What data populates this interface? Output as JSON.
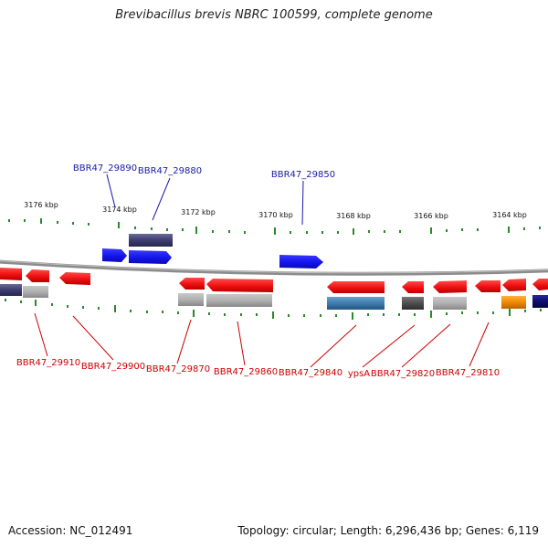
{
  "title": "Brevibacillus brevis NBRC 100599, complete genome",
  "accession": "Accession: NC_012491",
  "summary": "Topology: circular; Length: 6,296,436 bp; Genes: 6,119",
  "colors": {
    "forward_cds": "#1a1aee",
    "reverse_cds": "#ee1111",
    "backbone": "#8c8c8c",
    "tick": "#2a8a2a",
    "label_forward": "#1a1aa8",
    "label_reverse": "#cc0000"
  },
  "scale_labels": [
    "3176 kbp",
    "3174 kbp",
    "3172 kbp",
    "3170 kbp",
    "3168 kbp",
    "3166 kbp",
    "3164 kbp"
  ],
  "gene_labels_top": [
    "BBR47_29890",
    "BBR47_29880",
    "BBR47_29850"
  ],
  "gene_labels_bottom": [
    "BBR47_29910",
    "BBR47_29900",
    "BBR47_29870",
    "BBR47_29860",
    "BBR47_29840",
    "ypsA",
    "BBR47_29820",
    "BBR47_29810"
  ]
}
